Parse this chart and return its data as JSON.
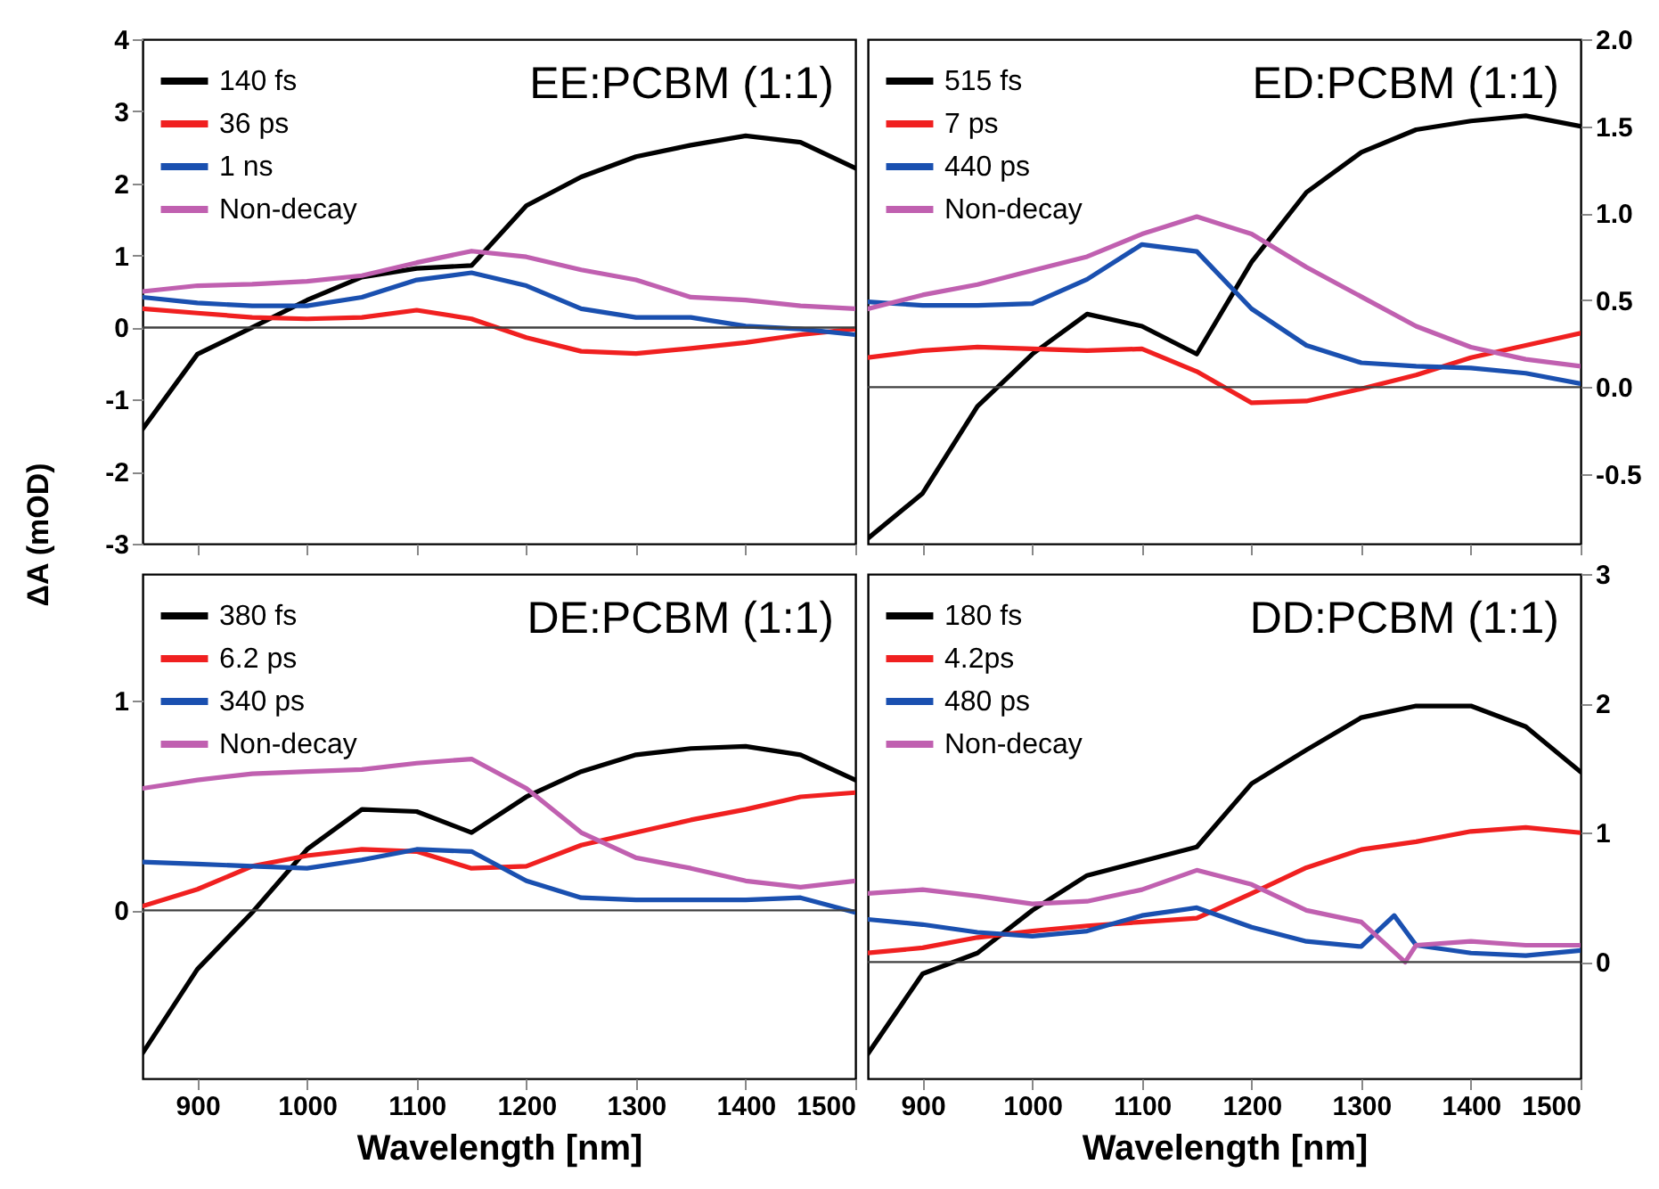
{
  "chart_data": [
    {
      "type": "line",
      "annotations": [
        "EE:PCBM (1:1)"
      ],
      "ylabel": "ΔA (mOD)",
      "x": [
        850,
        900,
        950,
        1000,
        1050,
        1100,
        1150,
        1200,
        1250,
        1300,
        1350,
        1400,
        1450,
        1500
      ],
      "xlim": [
        850,
        1500
      ],
      "xticks": [
        900,
        1000,
        1100,
        1200,
        1300,
        1400,
        1500
      ],
      "ylim": [
        -3,
        4
      ],
      "yticks": [
        -3,
        -2,
        -1,
        0,
        1,
        2,
        3,
        4
      ],
      "tick_labels": "y",
      "legend": "top left",
      "ref_lines": [
        {
          "axis": "y",
          "value": 0,
          "color": "#404040"
        }
      ],
      "series": [
        {
          "name": "140 fs",
          "color": "#000000",
          "values": [
            -1.41,
            -0.37,
            0,
            0.38,
            0.7,
            0.82,
            0.86,
            1.69,
            2.09,
            2.37,
            2.53,
            2.66,
            2.57,
            2.21
          ]
        },
        {
          "name": "36 ps",
          "color": "#f02020",
          "values": [
            0.26,
            0.2,
            0.14,
            0.12,
            0.14,
            0.24,
            0.12,
            -0.14,
            -0.33,
            -0.36,
            -0.29,
            -0.21,
            -0.1,
            -0.02
          ]
        },
        {
          "name": "1 ns",
          "color": "#1a50b0",
          "values": [
            0.42,
            0.34,
            0.3,
            0.3,
            0.42,
            0.66,
            0.76,
            0.58,
            0.26,
            0.14,
            0.14,
            0.02,
            -0.02,
            -0.1
          ]
        },
        {
          "name": "Non-decay",
          "color": "#c060b0",
          "values": [
            0.5,
            0.58,
            0.6,
            0.64,
            0.72,
            0.9,
            1.06,
            0.98,
            0.8,
            0.66,
            0.42,
            0.38,
            0.3,
            0.26
          ]
        }
      ]
    },
    {
      "type": "line",
      "annotations": [
        "ED:PCBM (1:1)"
      ],
      "x": [
        850,
        900,
        950,
        1000,
        1050,
        1100,
        1150,
        1200,
        1250,
        1300,
        1350,
        1400,
        1450,
        1500
      ],
      "xlim": [
        850,
        1500
      ],
      "xticks": [
        900,
        1000,
        1100,
        1200,
        1300,
        1400,
        1500
      ],
      "ylim": [
        -0.9,
        2.0
      ],
      "yticks": [
        -0.5,
        {
          "value": 0,
          "label": "0.0"
        },
        0.5,
        {
          "value": 1,
          "label": "1.0"
        },
        1.5,
        {
          "value": 2,
          "label": "2.0"
        }
      ],
      "tick_labels": "y",
      "legend": "top left",
      "ref_lines": [
        {
          "axis": "y",
          "value": 0,
          "color": "#404040"
        }
      ],
      "series": [
        {
          "name": "515 fs",
          "color": "#000000",
          "values": [
            -0.87,
            -0.61,
            -0.11,
            0.19,
            0.42,
            0.35,
            0.19,
            0.72,
            1.12,
            1.35,
            1.48,
            1.53,
            1.56,
            1.5
          ]
        },
        {
          "name": "7 ps",
          "color": "#f02020",
          "values": [
            0.17,
            0.21,
            0.23,
            0.22,
            0.21,
            0.22,
            0.09,
            -0.09,
            -0.08,
            -0.01,
            0.07,
            0.17,
            0.24,
            0.31
          ]
        },
        {
          "name": "440 ps",
          "color": "#1a50b0",
          "values": [
            0.49,
            0.47,
            0.47,
            0.48,
            0.62,
            0.82,
            0.78,
            0.45,
            0.24,
            0.14,
            0.12,
            0.11,
            0.08,
            0.02
          ]
        },
        {
          "name": "Non-decay",
          "color": "#c060b0",
          "values": [
            0.45,
            0.53,
            0.59,
            0.67,
            0.75,
            0.88,
            0.98,
            0.88,
            0.69,
            0.52,
            0.35,
            0.23,
            0.16,
            0.12
          ]
        }
      ]
    },
    {
      "type": "line",
      "annotations": [
        "DE:PCBM (1:1)"
      ],
      "xlabel": "Wavelength [nm]",
      "x": [
        850,
        900,
        950,
        1000,
        1050,
        1100,
        1150,
        1200,
        1250,
        1300,
        1350,
        1400,
        1450,
        1500
      ],
      "xlim": [
        850,
        1500
      ],
      "xticks": [
        900,
        1000,
        1100,
        1200,
        1300,
        1400,
        1500
      ],
      "ylim": [
        -0.8,
        1.6
      ],
      "yticks": [
        0,
        1
      ],
      "legend": "top left",
      "ref_lines": [
        {
          "axis": "y",
          "value": 0,
          "color": "#404040"
        }
      ],
      "series": [
        {
          "name": "380 fs",
          "color": "#000000",
          "values": [
            -0.68,
            -0.28,
            -0.01,
            0.29,
            0.48,
            0.47,
            0.37,
            0.54,
            0.66,
            0.74,
            0.77,
            0.78,
            0.74,
            0.62
          ]
        },
        {
          "name": "6.2 ps",
          "color": "#f02020",
          "values": [
            0.02,
            0.1,
            0.21,
            0.26,
            0.29,
            0.28,
            0.2,
            0.21,
            0.31,
            0.37,
            0.43,
            0.48,
            0.54,
            0.56
          ]
        },
        {
          "name": "340 ps",
          "color": "#1a50b0",
          "values": [
            0.23,
            0.22,
            0.21,
            0.2,
            0.24,
            0.29,
            0.28,
            0.14,
            0.06,
            0.05,
            0.05,
            0.05,
            0.06,
            -0.01
          ]
        },
        {
          "name": "Non-decay",
          "color": "#c060b0",
          "values": [
            0.58,
            0.62,
            0.65,
            0.66,
            0.67,
            0.7,
            0.72,
            0.58,
            0.37,
            0.25,
            0.2,
            0.14,
            0.11,
            0.14
          ]
        }
      ]
    },
    {
      "type": "line",
      "annotations": [
        "DD:PCBM (1:1)"
      ],
      "xlabel": "Wavelength [nm]",
      "x": [
        850,
        900,
        950,
        1000,
        1050,
        1100,
        1150,
        1200,
        1250,
        1300,
        1350,
        1400,
        1450,
        1500
      ],
      "xlim": [
        850,
        1500
      ],
      "xticks": [
        900,
        1000,
        1100,
        1200,
        1300,
        1400,
        1500
      ],
      "ylim": [
        -0.9,
        3
      ],
      "yticks": [
        0,
        1,
        2,
        3
      ],
      "legend": "top left",
      "ref_lines": [
        {
          "axis": "y",
          "value": 0,
          "color": "#404040"
        }
      ],
      "series": [
        {
          "name": "180 fs",
          "color": "#000000",
          "values": [
            -0.71,
            -0.09,
            0.07,
            0.4,
            0.67,
            0.78,
            0.89,
            1.38,
            1.64,
            1.89,
            1.98,
            1.98,
            1.82,
            1.47
          ]
        },
        {
          "name": "4.2ps",
          "color": "#f02020",
          "values": [
            0.07,
            0.11,
            0.19,
            0.24,
            0.28,
            0.31,
            0.34,
            0.53,
            0.73,
            0.87,
            0.93,
            1.01,
            1.04,
            1.0
          ]
        },
        {
          "name": "480 ps",
          "color": "#1a50b0",
          "x": [
            850,
            900,
            950,
            1000,
            1050,
            1100,
            1150,
            1200,
            1250,
            1300,
            1330,
            1350,
            1400,
            1450,
            1500
          ],
          "values": [
            0.33,
            0.29,
            0.23,
            0.2,
            0.24,
            0.36,
            0.42,
            0.27,
            0.16,
            0.12,
            0.36,
            0.13,
            0.07,
            0.05,
            0.09
          ]
        },
        {
          "name": "Non-decay",
          "color": "#c060b0",
          "x": [
            850,
            900,
            950,
            1000,
            1050,
            1100,
            1150,
            1200,
            1250,
            1300,
            1340,
            1350,
            1400,
            1450,
            1500
          ],
          "values": [
            0.53,
            0.56,
            0.51,
            0.45,
            0.47,
            0.56,
            0.71,
            0.6,
            0.4,
            0.31,
            0.0,
            0.13,
            0.16,
            0.13,
            0.13
          ]
        }
      ]
    }
  ]
}
